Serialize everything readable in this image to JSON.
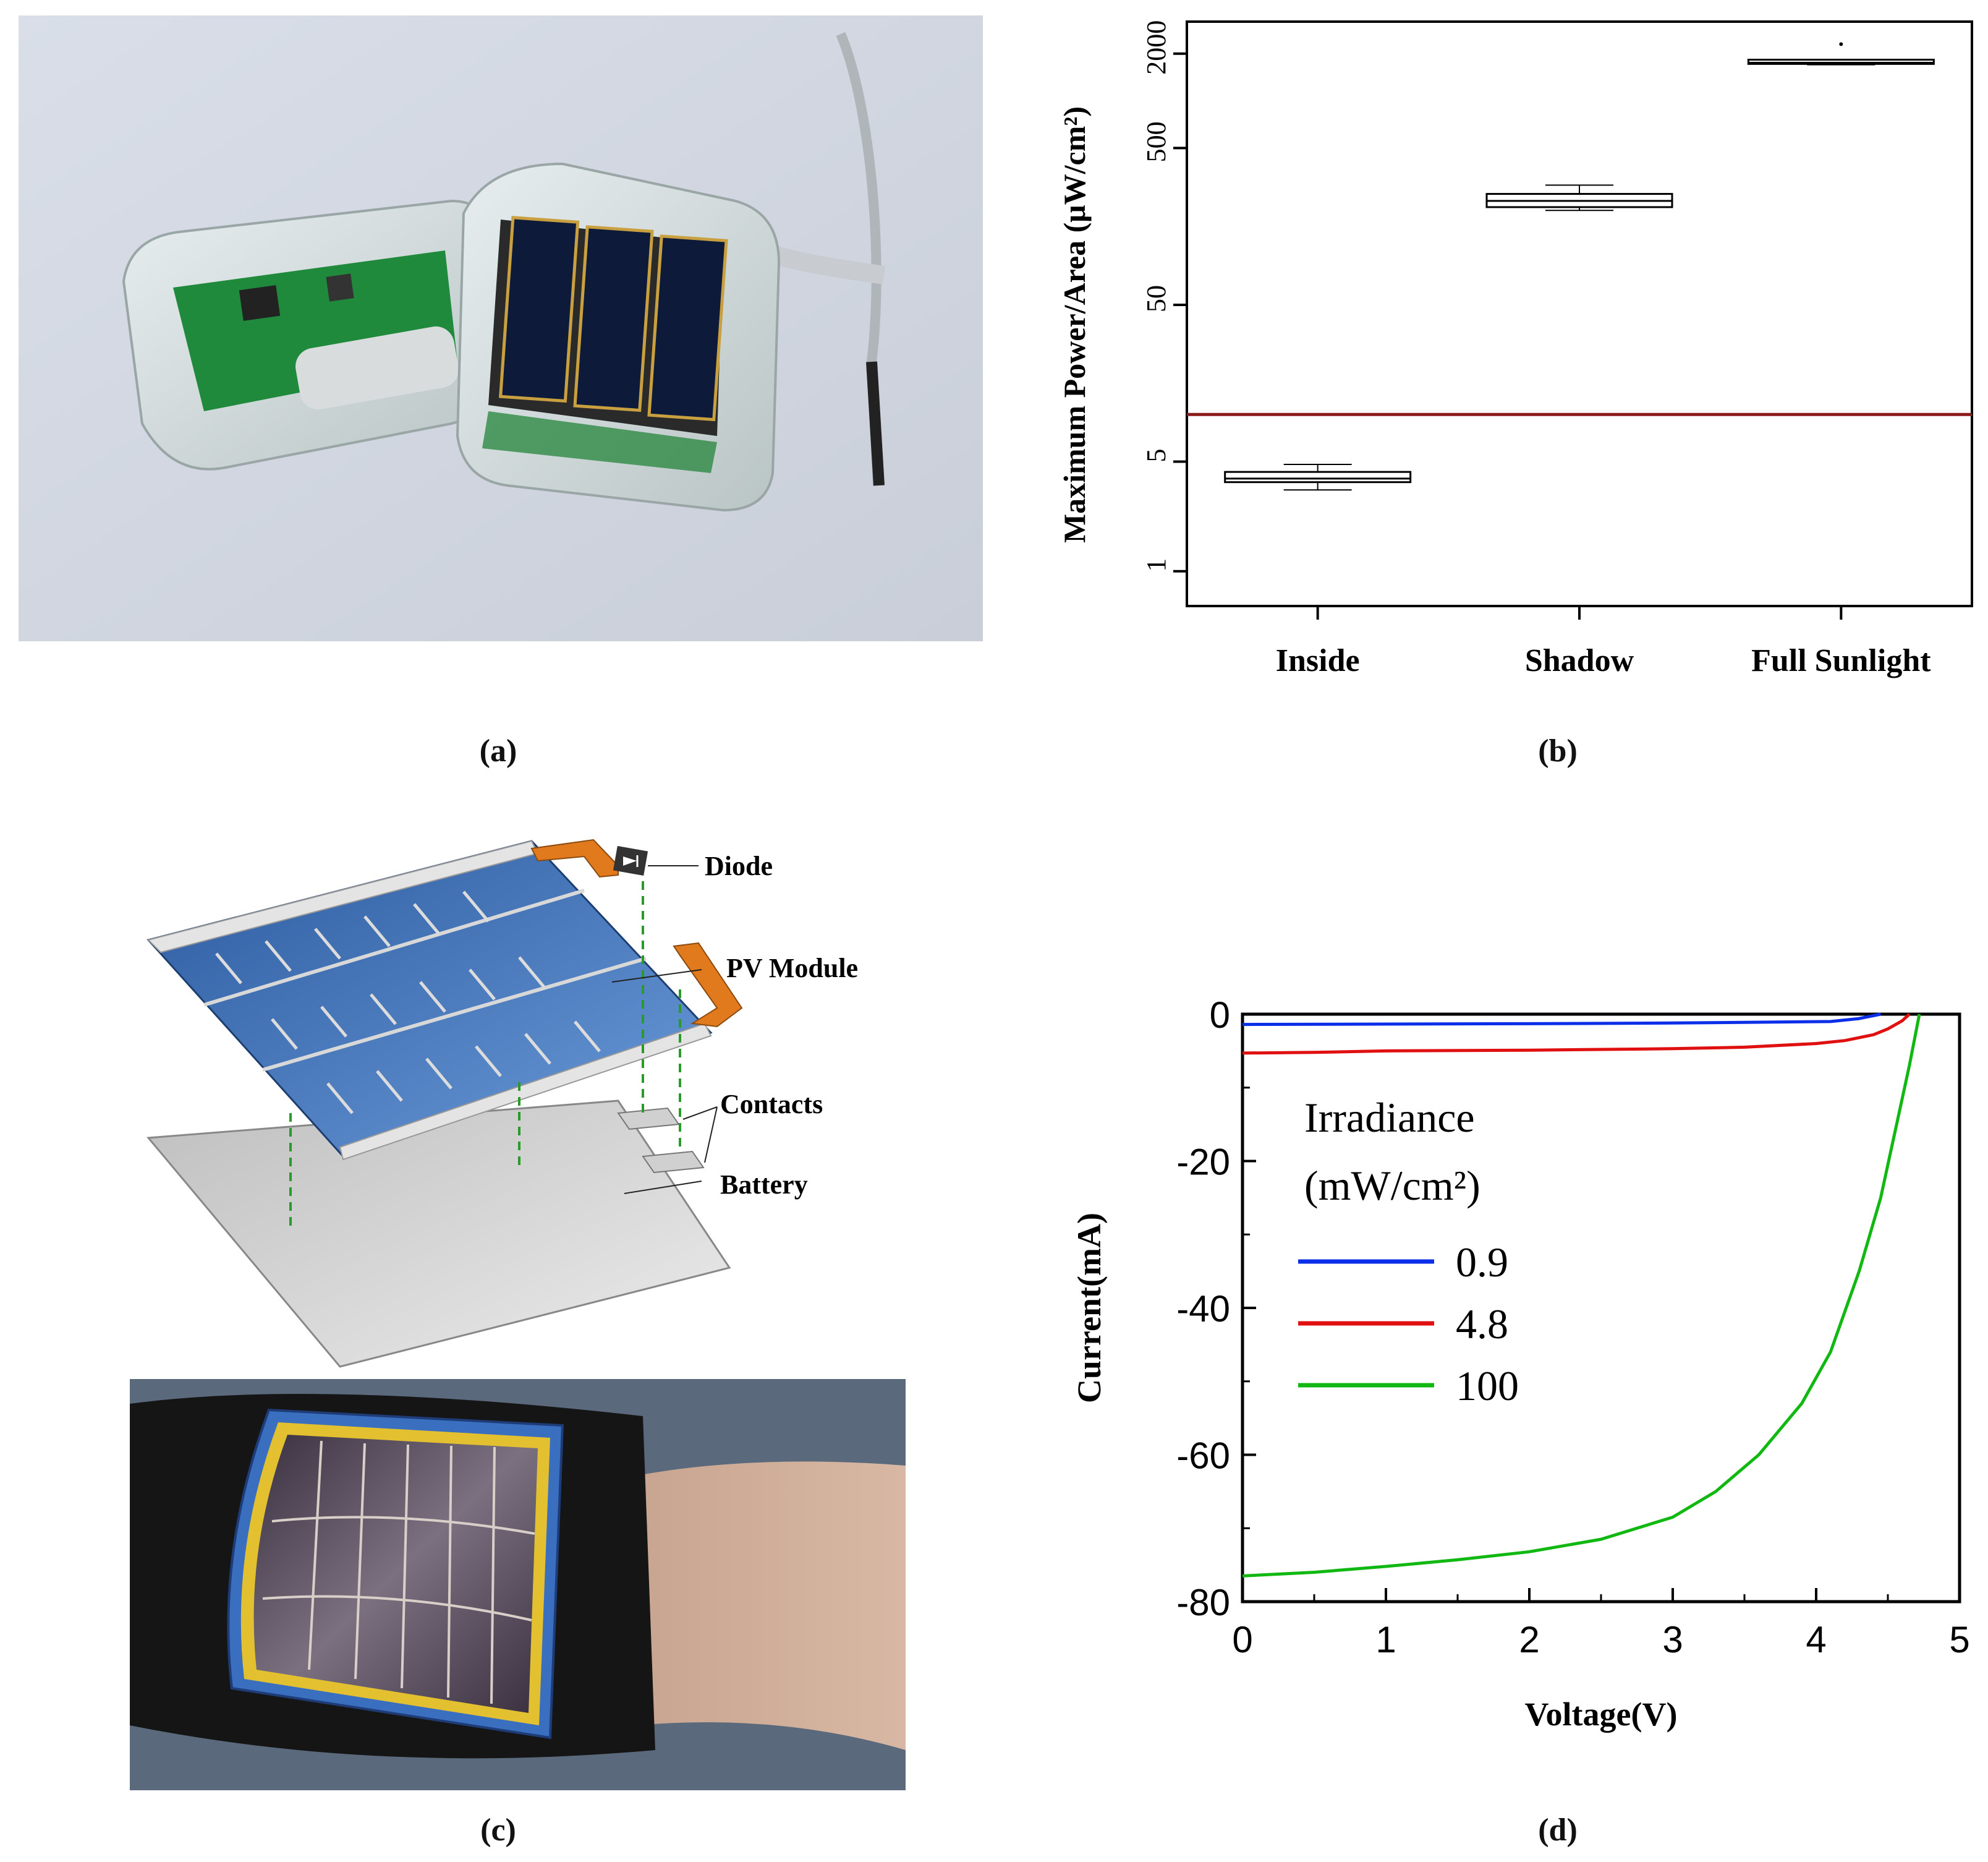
{
  "captions": {
    "a": "(a)",
    "b": "(b)",
    "c": "(c)",
    "d": "(d)"
  },
  "diagram_labels": {
    "diode": "Diode",
    "pv_module": "PV Module",
    "contacts": "Contacts",
    "battery": "Battery"
  },
  "colors": {
    "threshold_line": "#8b1a1a",
    "series_0_9": "#0b2ee8",
    "series_4_8": "#e01010",
    "series_100": "#12b812",
    "pv_blue": "#3a6fb5",
    "flex_orange": "#e07a1c"
  },
  "chart_data": [
    {
      "type": "box",
      "ylabel": "Maximum Power/Area (μW/cm²)",
      "yscale": "log",
      "ylim": [
        0.6,
        3200
      ],
      "yticks": [
        1,
        5,
        50,
        500,
        2000
      ],
      "categories": [
        "Inside",
        "Shadow",
        "Full Sunlight"
      ],
      "boxes": [
        {
          "category": "Inside",
          "min": 3.3,
          "q1": 3.7,
          "median": 3.9,
          "q3": 4.3,
          "max": 4.8
        },
        {
          "category": "Shadow",
          "min": 200,
          "q1": 210,
          "median": 230,
          "q3": 255,
          "max": 290
        },
        {
          "category": "Full Sunlight",
          "min": 1700,
          "q1": 1720,
          "median": 1750,
          "q3": 1830,
          "max": 1830,
          "outliers": [
            2300
          ]
        }
      ],
      "reference_line": 10,
      "grid": false
    },
    {
      "type": "line",
      "xlabel": "Voltage(V)",
      "ylabel": "Current(mA)",
      "xlim": [
        0,
        5
      ],
      "ylim": [
        -80,
        0
      ],
      "xticks": [
        0,
        1,
        2,
        3,
        4,
        5
      ],
      "yticks": [
        0,
        -20,
        -40,
        -60,
        -80
      ],
      "legend_title": [
        "Irradiance",
        "(mW/cm²)"
      ],
      "legend_placement": "left",
      "series": [
        {
          "name": "0.9",
          "color": "#0b2ee8",
          "x": [
            0,
            1,
            2,
            3,
            4.1,
            4.3,
            4.45
          ],
          "y": [
            -1.4,
            -1.35,
            -1.3,
            -1.2,
            -1.0,
            -0.6,
            0
          ]
        },
        {
          "name": "4.8",
          "color": "#e01010",
          "x": [
            0,
            0.5,
            1,
            2,
            3,
            3.5,
            4.0,
            4.2,
            4.4,
            4.5,
            4.6,
            4.65
          ],
          "y": [
            -5.3,
            -5.2,
            -5.0,
            -4.9,
            -4.7,
            -4.5,
            -4.0,
            -3.6,
            -2.8,
            -2.0,
            -0.9,
            0
          ]
        },
        {
          "name": "100",
          "color": "#12b812",
          "x": [
            0,
            0.5,
            1,
            1.5,
            2,
            2.5,
            3,
            3.3,
            3.6,
            3.9,
            4.1,
            4.3,
            4.45,
            4.55,
            4.65,
            4.72
          ],
          "y": [
            -76.5,
            -76,
            -75.2,
            -74.3,
            -73.2,
            -71.5,
            -68.5,
            -65,
            -60,
            -53,
            -46,
            -35,
            -25,
            -16,
            -7,
            0
          ]
        }
      ]
    }
  ]
}
